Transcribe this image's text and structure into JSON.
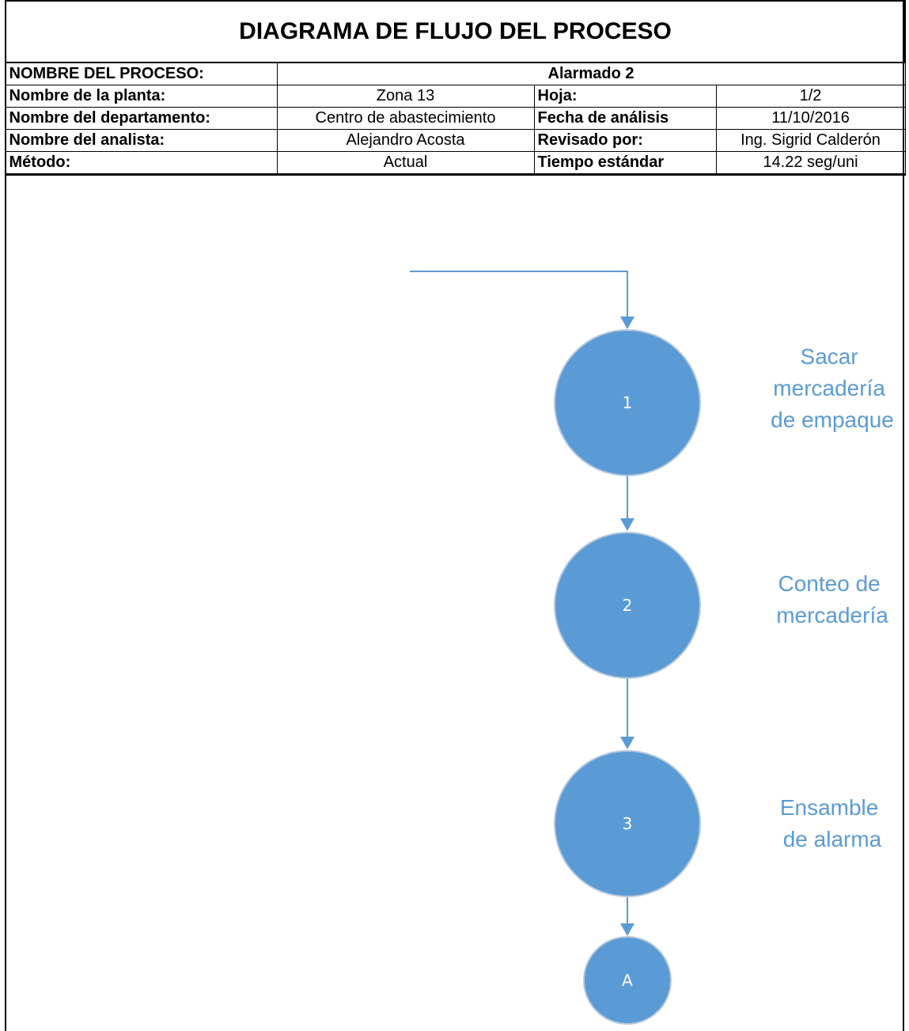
{
  "header": {
    "title": "DIAGRAMA DE FLUJO DEL PROCESO",
    "process_label": "NOMBRE DEL PROCESO:",
    "process_value": "Alarmado 2",
    "plant_label": "Nombre de la planta:",
    "plant_value": "Zona 13",
    "sheet_label": "Hoja:",
    "sheet_value": "1/2",
    "department_label": "Nombre del departamento:",
    "department_value": "Centro de abastecimiento",
    "date_label": "Fecha de análisis",
    "date_value": "11/10/2016",
    "analyst_label": "Nombre del analista:",
    "analyst_value": "Alejandro Acosta",
    "reviewed_label": "Revisado por:",
    "reviewed_value": "Ing. Sigrid Calderón",
    "method_label": "Método:",
    "method_value": "Actual",
    "std_time_label": "Tiempo estándar",
    "std_time_value": "14.22 seg/uni"
  },
  "flow": {
    "steps": [
      {
        "number": "1",
        "label_lines": [
          "Sacar",
          "mercadería",
          "de empaque"
        ]
      },
      {
        "number": "2",
        "label_lines": [
          "Conteo de",
          "mercadería"
        ]
      },
      {
        "number": "3",
        "label_lines": [
          "Ensamble",
          "de alarma"
        ]
      }
    ],
    "connector": "A",
    "colors": {
      "node_fill": "#5B9BD5",
      "node_stroke": "#B8C9DC",
      "line": "#5B9BD5",
      "label": "#5B9BD5",
      "node_text": "#ffffff"
    }
  }
}
